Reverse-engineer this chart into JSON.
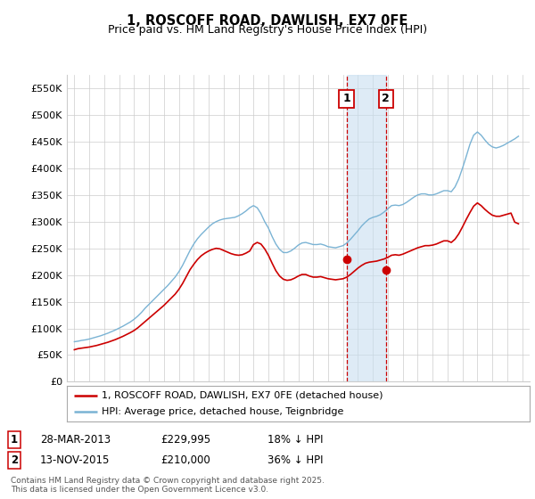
{
  "title": "1, ROSCOFF ROAD, DAWLISH, EX7 0FE",
  "subtitle": "Price paid vs. HM Land Registry's House Price Index (HPI)",
  "legend_line1": "1, ROSCOFF ROAD, DAWLISH, EX7 0FE (detached house)",
  "legend_line2": "HPI: Average price, detached house, Teignbridge",
  "footer": "Contains HM Land Registry data © Crown copyright and database right 2025.\nThis data is licensed under the Open Government Licence v3.0.",
  "sale1_label": "1",
  "sale1_date": "28-MAR-2013",
  "sale1_price": "£229,995",
  "sale1_hpi": "18% ↓ HPI",
  "sale2_label": "2",
  "sale2_date": "13-NOV-2015",
  "sale2_price": "£210,000",
  "sale2_hpi": "36% ↓ HPI",
  "sale1_x": 2013.23,
  "sale2_x": 2015.87,
  "sale1_price_val": 229995,
  "sale2_price_val": 210000,
  "hpi_color": "#7ab3d4",
  "price_color": "#cc0000",
  "sale_marker_color": "#cc0000",
  "grid_color": "#cccccc",
  "background_color": "#ffffff",
  "ylim": [
    0,
    575000
  ],
  "xlim": [
    1994.5,
    2025.5
  ],
  "yticks": [
    0,
    50000,
    100000,
    150000,
    200000,
    250000,
    300000,
    350000,
    400000,
    450000,
    500000,
    550000
  ],
  "ytick_labels": [
    "£0",
    "£50K",
    "£100K",
    "£150K",
    "£200K",
    "£250K",
    "£300K",
    "£350K",
    "£400K",
    "£450K",
    "£500K",
    "£550K"
  ],
  "xticks": [
    1995,
    1996,
    1997,
    1998,
    1999,
    2000,
    2001,
    2002,
    2003,
    2004,
    2005,
    2006,
    2007,
    2008,
    2009,
    2010,
    2011,
    2012,
    2013,
    2014,
    2015,
    2016,
    2017,
    2018,
    2019,
    2020,
    2021,
    2022,
    2023,
    2024,
    2025
  ],
  "hpi_data": {
    "years": [
      1995.0,
      1995.25,
      1995.5,
      1995.75,
      1996.0,
      1996.25,
      1996.5,
      1996.75,
      1997.0,
      1997.25,
      1997.5,
      1997.75,
      1998.0,
      1998.25,
      1998.5,
      1998.75,
      1999.0,
      1999.25,
      1999.5,
      1999.75,
      2000.0,
      2000.25,
      2000.5,
      2000.75,
      2001.0,
      2001.25,
      2001.5,
      2001.75,
      2002.0,
      2002.25,
      2002.5,
      2002.75,
      2003.0,
      2003.25,
      2003.5,
      2003.75,
      2004.0,
      2004.25,
      2004.5,
      2004.75,
      2005.0,
      2005.25,
      2005.5,
      2005.75,
      2006.0,
      2006.25,
      2006.5,
      2006.75,
      2007.0,
      2007.25,
      2007.5,
      2007.75,
      2008.0,
      2008.25,
      2008.5,
      2008.75,
      2009.0,
      2009.25,
      2009.5,
      2009.75,
      2010.0,
      2010.25,
      2010.5,
      2010.75,
      2011.0,
      2011.25,
      2011.5,
      2011.75,
      2012.0,
      2012.25,
      2012.5,
      2012.75,
      2013.0,
      2013.25,
      2013.5,
      2013.75,
      2014.0,
      2014.25,
      2014.5,
      2014.75,
      2015.0,
      2015.25,
      2015.5,
      2015.75,
      2016.0,
      2016.25,
      2016.5,
      2016.75,
      2017.0,
      2017.25,
      2017.5,
      2017.75,
      2018.0,
      2018.25,
      2018.5,
      2018.75,
      2019.0,
      2019.25,
      2019.5,
      2019.75,
      2020.0,
      2020.25,
      2020.5,
      2020.75,
      2021.0,
      2021.25,
      2021.5,
      2021.75,
      2022.0,
      2022.25,
      2022.5,
      2022.75,
      2023.0,
      2023.25,
      2023.5,
      2023.75,
      2024.0,
      2024.25,
      2024.5,
      2024.75
    ],
    "values": [
      75000,
      76000,
      77500,
      78500,
      80000,
      82000,
      84000,
      86000,
      88500,
      91000,
      94000,
      97000,
      100500,
      104000,
      108000,
      112000,
      117000,
      123000,
      130000,
      138000,
      145000,
      152000,
      159000,
      166000,
      173000,
      180000,
      188000,
      196000,
      206000,
      218000,
      232000,
      246000,
      258000,
      268000,
      276000,
      283000,
      290000,
      296000,
      300000,
      303000,
      305000,
      306000,
      307000,
      308000,
      311000,
      315000,
      320000,
      326000,
      330000,
      326000,
      315000,
      300000,
      288000,
      272000,
      258000,
      248000,
      242000,
      242000,
      245000,
      250000,
      256000,
      260000,
      261000,
      259000,
      257000,
      257000,
      258000,
      256000,
      253000,
      252000,
      251000,
      253000,
      255000,
      260000,
      267000,
      275000,
      283000,
      292000,
      299000,
      305000,
      308000,
      310000,
      313000,
      318000,
      324000,
      330000,
      331000,
      330000,
      332000,
      336000,
      341000,
      346000,
      350000,
      352000,
      352000,
      350000,
      350000,
      352000,
      355000,
      358000,
      358000,
      356000,
      365000,
      380000,
      400000,
      422000,
      445000,
      462000,
      468000,
      462000,
      453000,
      445000,
      440000,
      438000,
      440000,
      443000,
      447000,
      451000,
      455000,
      460000
    ]
  },
  "price_data": {
    "years": [
      1995.0,
      1995.25,
      1995.5,
      1995.75,
      1996.0,
      1996.25,
      1996.5,
      1996.75,
      1997.0,
      1997.25,
      1997.5,
      1997.75,
      1998.0,
      1998.25,
      1998.5,
      1998.75,
      1999.0,
      1999.25,
      1999.5,
      1999.75,
      2000.0,
      2000.25,
      2000.5,
      2000.75,
      2001.0,
      2001.25,
      2001.5,
      2001.75,
      2002.0,
      2002.25,
      2002.5,
      2002.75,
      2003.0,
      2003.25,
      2003.5,
      2003.75,
      2004.0,
      2004.25,
      2004.5,
      2004.75,
      2005.0,
      2005.25,
      2005.5,
      2005.75,
      2006.0,
      2006.25,
      2006.5,
      2006.75,
      2007.0,
      2007.25,
      2007.5,
      2007.75,
      2008.0,
      2008.25,
      2008.5,
      2008.75,
      2009.0,
      2009.25,
      2009.5,
      2009.75,
      2010.0,
      2010.25,
      2010.5,
      2010.75,
      2011.0,
      2011.25,
      2011.5,
      2011.75,
      2012.0,
      2012.25,
      2012.5,
      2012.75,
      2013.0,
      2013.25,
      2013.5,
      2013.75,
      2014.0,
      2014.25,
      2014.5,
      2014.75,
      2015.0,
      2015.25,
      2015.5,
      2015.75,
      2016.0,
      2016.25,
      2016.5,
      2016.75,
      2017.0,
      2017.25,
      2017.5,
      2017.75,
      2018.0,
      2018.25,
      2018.5,
      2018.75,
      2019.0,
      2019.25,
      2019.5,
      2019.75,
      2020.0,
      2020.25,
      2020.5,
      2020.75,
      2021.0,
      2021.25,
      2021.5,
      2021.75,
      2022.0,
      2022.25,
      2022.5,
      2022.75,
      2023.0,
      2023.25,
      2023.5,
      2023.75,
      2024.0,
      2024.25,
      2024.5,
      2024.75
    ],
    "values": [
      60000,
      62000,
      63000,
      64000,
      65000,
      66500,
      68000,
      70000,
      72000,
      74000,
      76500,
      79000,
      82000,
      85000,
      88500,
      92000,
      96000,
      101000,
      107000,
      113000,
      119000,
      125000,
      131000,
      137000,
      143000,
      150000,
      157000,
      164000,
      173000,
      184000,
      197000,
      210000,
      220000,
      229000,
      236000,
      241000,
      245000,
      248000,
      250000,
      249000,
      246000,
      243000,
      240000,
      238000,
      237000,
      238000,
      241000,
      245000,
      257000,
      261000,
      258000,
      249000,
      237000,
      222000,
      208000,
      198000,
      192000,
      190000,
      191000,
      194000,
      198000,
      201000,
      201000,
      198000,
      196000,
      196000,
      197000,
      195000,
      193000,
      192000,
      191000,
      192000,
      193000,
      196000,
      201000,
      207000,
      213000,
      218000,
      222000,
      224000,
      225000,
      226000,
      228000,
      230000,
      233000,
      237000,
      238000,
      237000,
      239000,
      242000,
      245000,
      248000,
      251000,
      253000,
      255000,
      255000,
      256000,
      258000,
      261000,
      264000,
      264000,
      261000,
      267000,
      277000,
      290000,
      304000,
      317000,
      329000,
      335000,
      330000,
      323000,
      317000,
      312000,
      310000,
      310000,
      312000,
      314000,
      316000,
      299000,
      296000
    ]
  }
}
